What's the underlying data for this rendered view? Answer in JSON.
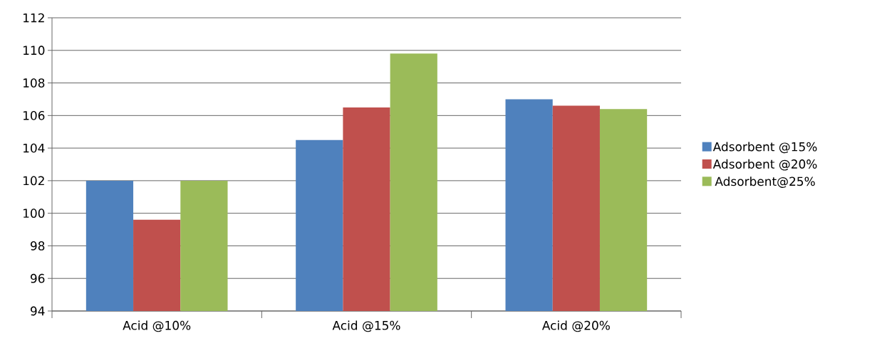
{
  "chart_data": {
    "type": "bar",
    "categories": [
      "Acid @10%",
      "Acid @15%",
      "Acid @20%"
    ],
    "series": [
      {
        "name": "Adsorbent @15%",
        "color": "#4f81bd",
        "values": [
          102.0,
          104.5,
          107.0
        ]
      },
      {
        "name": "Adsorbent @20%",
        "color": "#c0504d",
        "values": [
          99.6,
          106.5,
          106.6
        ]
      },
      {
        "name": "Adsorbent@25%",
        "color": "#9bbb59",
        "values": [
          102.0,
          109.8,
          106.4
        ]
      }
    ],
    "ylim": [
      94,
      112
    ],
    "yticks": [
      94,
      96,
      98,
      100,
      102,
      104,
      106,
      108,
      110,
      112
    ],
    "grid": "y",
    "legend": "right"
  }
}
